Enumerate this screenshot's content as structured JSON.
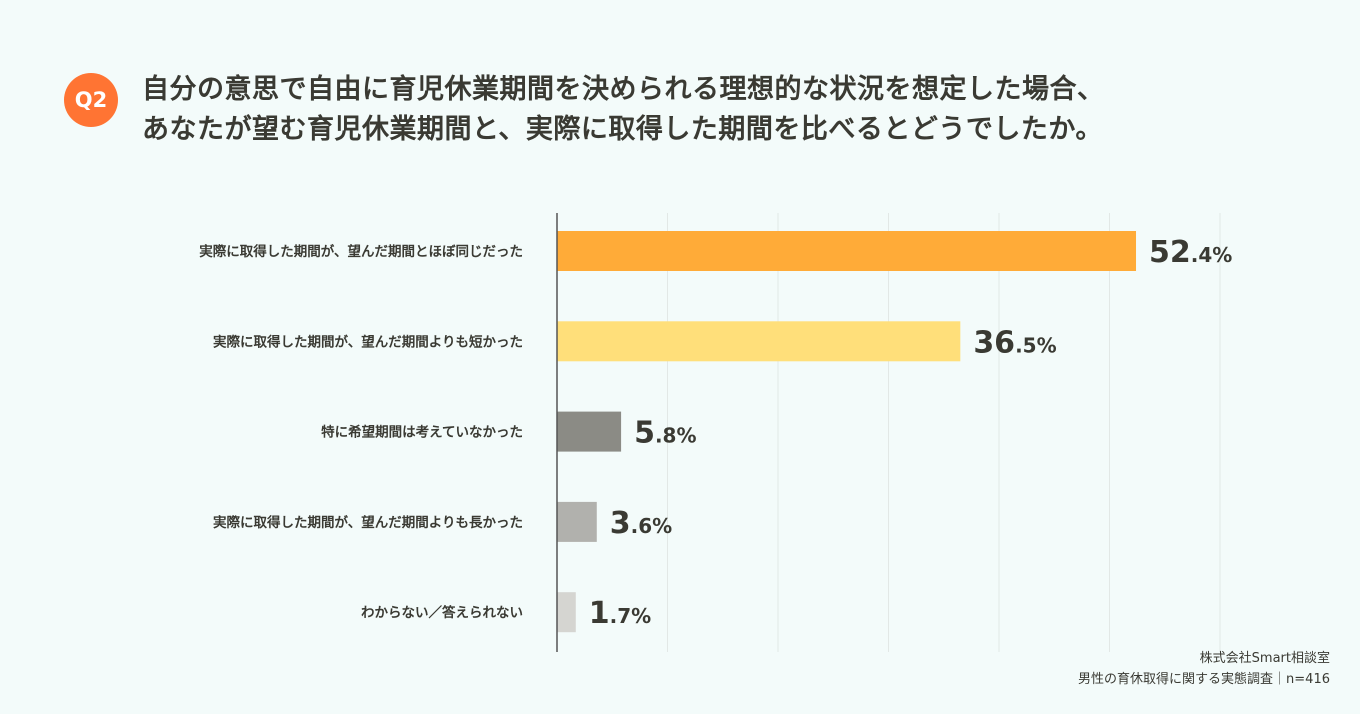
{
  "badge": "Q2",
  "title_lines": [
    "自分の意思で自由に育児休業期間を決められる理想的な状況を想定した場合、",
    "あなたが望む育児休業期間と、実際に取得した期間を比べるとどうでしたか。"
  ],
  "footer": {
    "source": "株式会社Smart相談室",
    "survey": "男性の育休取得に関する実態調査｜n=416"
  },
  "chart_data": {
    "type": "bar",
    "orientation": "horizontal",
    "categories": [
      "実際に取得した期間が、望んだ期間とほぼ同じだった",
      "実際に取得した期間が、望んだ期間よりも短かった",
      "特に希望期間は考えていなかった",
      "実際に取得した期間が、望んだ期間よりも長かった",
      "わからない／答えられない"
    ],
    "values": [
      52.4,
      36.5,
      5.8,
      3.6,
      1.7
    ],
    "unit": "%",
    "colors": [
      "#ffab38",
      "#ffdf7a",
      "#8b8b85",
      "#b1b1ad",
      "#d5d5d1"
    ],
    "xlim": [
      0,
      60
    ],
    "grid": true
  }
}
